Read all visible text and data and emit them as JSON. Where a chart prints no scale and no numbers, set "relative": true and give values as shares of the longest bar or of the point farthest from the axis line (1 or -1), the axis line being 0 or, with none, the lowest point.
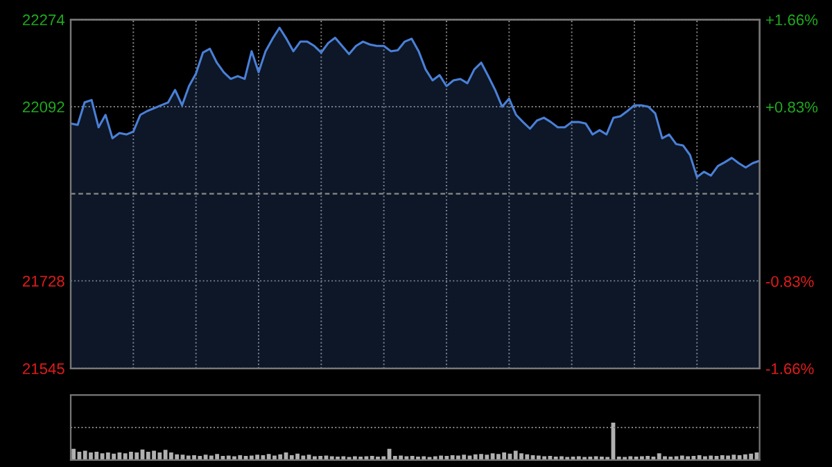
{
  "chart_data": [
    {
      "type": "area",
      "categories": [
        null,
        null,
        null,
        null,
        null,
        null,
        null,
        null,
        null,
        null,
        null,
        null,
        null,
        null,
        null,
        null,
        null,
        null,
        null,
        null,
        null,
        null,
        null,
        null,
        null,
        null,
        null,
        null,
        null,
        null,
        null,
        null,
        null,
        null,
        null,
        null,
        null,
        null,
        null,
        null,
        null,
        null,
        null,
        null,
        null,
        null,
        null,
        null,
        null,
        null,
        null,
        null,
        null,
        null,
        null,
        null,
        null,
        null,
        null,
        null,
        null,
        null,
        null,
        null,
        null,
        null,
        null,
        null,
        null,
        null,
        null,
        null,
        null,
        null,
        null,
        null,
        null,
        null,
        null,
        null,
        null,
        null,
        null,
        null,
        null,
        null,
        null,
        null,
        null,
        null,
        null,
        null,
        null,
        null,
        null,
        null,
        null,
        null,
        null,
        null
      ],
      "series": [
        {
          "color": "#4a80d8",
          "values": [
            22057,
            22054,
            22101,
            22106,
            22049,
            22075,
            22026,
            22037,
            22034,
            22040,
            22075,
            22083,
            22089,
            22095,
            22101,
            22127,
            22095,
            22135,
            22161,
            22205,
            22213,
            22184,
            22164,
            22150,
            22156,
            22150,
            22208,
            22164,
            22208,
            22234,
            22257,
            22234,
            22208,
            22228,
            22228,
            22219,
            22205,
            22225,
            22236,
            22219,
            22202,
            22219,
            22228,
            22222,
            22219,
            22219,
            22208,
            22210,
            22228,
            22234,
            22208,
            22170,
            22147,
            22158,
            22135,
            22147,
            22150,
            22141,
            22170,
            22184,
            22156,
            22127,
            22092,
            22109,
            22075,
            22060,
            22046,
            22063,
            22069,
            22060,
            22049,
            22049,
            22060,
            22060,
            22057,
            22034,
            22043,
            22034,
            22069,
            22072,
            22083,
            22095,
            22095,
            22092,
            22078,
            22026,
            22034,
            22014,
            22011,
            21991,
            21945,
            21956,
            21948,
            21968,
            21976,
            21985,
            21974,
            21965,
            21974,
            21979
          ]
        }
      ],
      "ylim": [
        21545,
        22274
      ],
      "yticks": [
        21545,
        21728,
        22092,
        22274
      ],
      "y2lim": [
        -1.66,
        1.66
      ],
      "y2ticks": [
        {
          "value": -1.66,
          "label": "-1.66%"
        },
        {
          "value": -0.83,
          "label": "-0.83%"
        },
        {
          "value": 0.83,
          "label": "+0.83%"
        },
        {
          "value": 1.66,
          "label": "+1.66%"
        }
      ],
      "ref_lines": [
        {
          "axis": "y",
          "value": 21910,
          "color": "#8a8a8a",
          "line_style": "dashed"
        }
      ],
      "grid": true
    },
    {
      "type": "bar",
      "relative": true,
      "ref_lines": [
        {
          "axis": "y",
          "value": 0.87,
          "color": "#888888",
          "line_style": "dotted"
        }
      ],
      "categories": [
        null,
        null,
        null,
        null,
        null,
        null,
        null,
        null,
        null,
        null,
        null,
        null,
        null,
        null,
        null,
        null,
        null,
        null,
        null,
        null,
        null,
        null,
        null,
        null,
        null,
        null,
        null,
        null,
        null,
        null,
        null,
        null,
        null,
        null,
        null,
        null,
        null,
        null,
        null,
        null,
        null,
        null,
        null,
        null,
        null,
        null,
        null,
        null,
        null,
        null,
        null,
        null,
        null,
        null,
        null,
        null,
        null,
        null,
        null,
        null,
        null,
        null,
        null,
        null,
        null,
        null,
        null,
        null,
        null,
        null,
        null,
        null,
        null,
        null,
        null,
        null,
        null,
        null,
        null,
        null,
        null,
        null,
        null,
        null,
        null,
        null,
        null,
        null,
        null,
        null,
        null,
        null,
        null,
        null,
        null,
        null,
        null,
        null,
        null,
        null,
        null,
        null,
        null,
        null,
        null,
        null,
        null,
        null,
        null,
        null,
        null,
        null,
        null,
        null,
        null,
        null,
        null,
        null,
        null,
        null
      ],
      "series": [
        {
          "color": "#b0b0b0",
          "values": [
            0.3,
            0.22,
            0.25,
            0.2,
            0.22,
            0.18,
            0.2,
            0.17,
            0.2,
            0.18,
            0.22,
            0.2,
            0.28,
            0.22,
            0.25,
            0.2,
            0.27,
            0.2,
            0.15,
            0.14,
            0.12,
            0.13,
            0.11,
            0.14,
            0.12,
            0.16,
            0.11,
            0.12,
            0.1,
            0.13,
            0.11,
            0.12,
            0.14,
            0.13,
            0.16,
            0.12,
            0.15,
            0.2,
            0.13,
            0.17,
            0.12,
            0.14,
            0.1,
            0.11,
            0.12,
            0.1,
            0.09,
            0.1,
            0.08,
            0.1,
            0.09,
            0.1,
            0.11,
            0.09,
            0.1,
            0.3,
            0.11,
            0.12,
            0.1,
            0.11,
            0.09,
            0.1,
            0.08,
            0.1,
            0.12,
            0.11,
            0.13,
            0.12,
            0.14,
            0.12,
            0.15,
            0.16,
            0.14,
            0.18,
            0.16,
            0.2,
            0.17,
            0.25,
            0.18,
            0.15,
            0.13,
            0.12,
            0.1,
            0.11,
            0.09,
            0.1,
            0.08,
            0.09,
            0.1,
            0.08,
            0.09,
            0.1,
            0.09,
            0.08,
            1.0,
            0.09,
            0.08,
            0.1,
            0.09,
            0.1,
            0.11,
            0.09,
            0.18,
            0.1,
            0.09,
            0.1,
            0.12,
            0.1,
            0.11,
            0.13,
            0.1,
            0.12,
            0.11,
            0.13,
            0.12,
            0.14,
            0.13,
            0.15,
            0.17,
            0.2
          ]
        }
      ]
    }
  ]
}
